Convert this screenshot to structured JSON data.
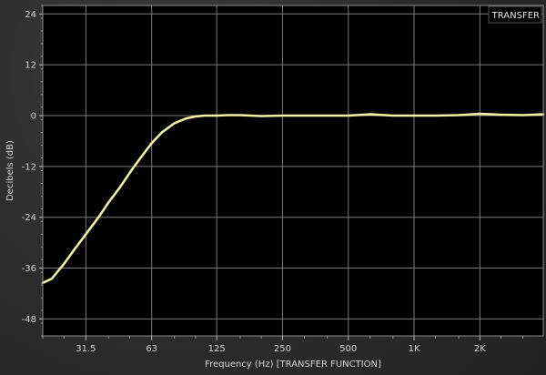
{
  "chart_data": {
    "type": "line",
    "title": "",
    "xlabel": "Frequency (Hz) [TRANSFER FUNCTION]",
    "ylabel": "Decibels (dB)",
    "legend": "TRANSFER",
    "legend_position": "top-right",
    "x_scale": "log",
    "xlim": [
      20,
      3900
    ],
    "ylim": [
      -52,
      26
    ],
    "grid": true,
    "x_ticks": [
      {
        "value": 31.5,
        "label": "31.5"
      },
      {
        "value": 63,
        "label": "63"
      },
      {
        "value": 125,
        "label": "125"
      },
      {
        "value": 250,
        "label": "250"
      },
      {
        "value": 500,
        "label": "500"
      },
      {
        "value": 1000,
        "label": "1K"
      },
      {
        "value": 2000,
        "label": "2K"
      },
      {
        "value": 4000,
        "label": ""
      }
    ],
    "y_ticks": [
      {
        "value": 24,
        "label": "24"
      },
      {
        "value": 12,
        "label": "12"
      },
      {
        "value": 0,
        "label": "0"
      },
      {
        "value": -12,
        "label": "-12"
      },
      {
        "value": -24,
        "label": "-24"
      },
      {
        "value": -36,
        "label": "-36"
      },
      {
        "value": -48,
        "label": "-48"
      }
    ],
    "series": [
      {
        "name": "TRANSFER",
        "color": "#f0f0a0",
        "x": [
          20,
          22,
          25,
          28,
          31.5,
          36,
          40,
          45,
          50,
          56,
          63,
          70,
          80,
          90,
          100,
          110,
          125,
          140,
          160,
          200,
          250,
          315,
          400,
          500,
          630,
          800,
          1000,
          1250,
          1600,
          2000,
          2500,
          3150,
          3900
        ],
        "y": [
          -39.5,
          -38.5,
          -35,
          -31.5,
          -28,
          -24,
          -20.5,
          -17,
          -13.5,
          -10,
          -6.5,
          -4,
          -1.8,
          -0.7,
          -0.2,
          0,
          0,
          0.1,
          0.1,
          -0.1,
          0,
          0,
          0,
          0,
          0.3,
          0,
          0,
          0,
          0.1,
          0.4,
          0.2,
          0.1,
          0.3
        ]
      }
    ]
  },
  "colors": {
    "plot_background": "#000000",
    "grid": "#7a7a7a",
    "frame": "#8c8c8c",
    "text": "#d8d8d8"
  }
}
